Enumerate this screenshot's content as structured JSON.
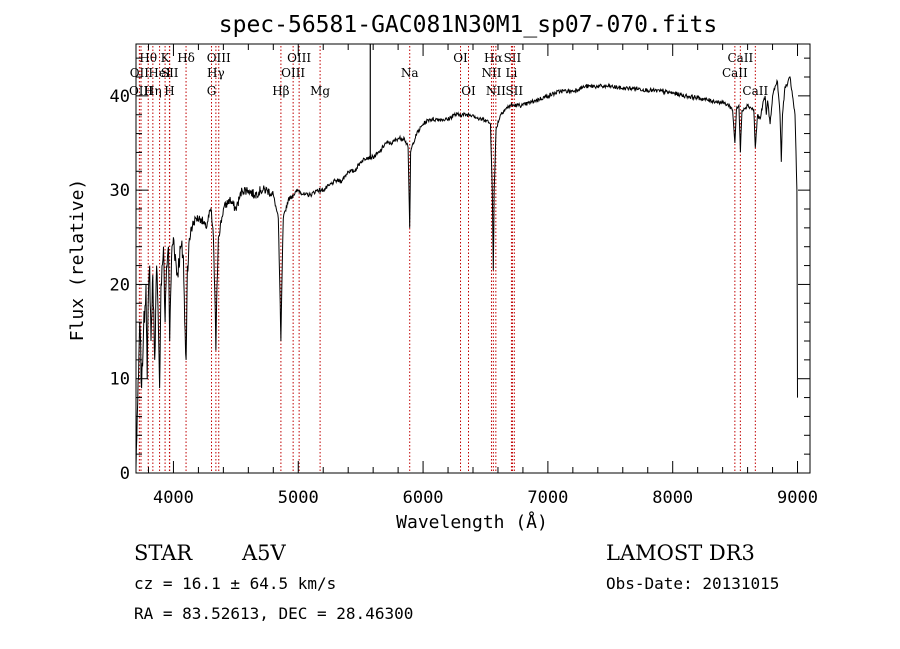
{
  "chart_data": {
    "type": "line",
    "title": "spec-56581-GAC081N30M1_sp07-070.fits",
    "xlabel": "Wavelength (Å)",
    "ylabel": "Flux (relative)",
    "xlim": [
      3700,
      9100
    ],
    "ylim": [
      0,
      45.5
    ],
    "xticks": [
      4000,
      5000,
      6000,
      7000,
      8000,
      9000
    ],
    "yticks": [
      0,
      10,
      20,
      30,
      40
    ],
    "x_minor_step": 200,
    "y_minor_step": 2,
    "grid": false,
    "series": [
      {
        "name": "spectrum",
        "anchors": [
          [
            3700,
            0.5
          ],
          [
            3710,
            6
          ],
          [
            3720,
            10
          ],
          [
            3730,
            16
          ],
          [
            3745,
            9
          ],
          [
            3760,
            15
          ],
          [
            3780,
            20
          ],
          [
            3790,
            10
          ],
          [
            3798,
            18
          ],
          [
            3810,
            22
          ],
          [
            3820,
            14
          ],
          [
            3835,
            21
          ],
          [
            3850,
            12
          ],
          [
            3865,
            22
          ],
          [
            3880,
            15
          ],
          [
            3889,
            9
          ],
          [
            3900,
            20
          ],
          [
            3920,
            24
          ],
          [
            3933,
            16
          ],
          [
            3945,
            22
          ],
          [
            3960,
            24
          ],
          [
            3970,
            14
          ],
          [
            3985,
            23
          ],
          [
            4000,
            25
          ],
          [
            4030,
            21
          ],
          [
            4060,
            24
          ],
          [
            4080,
            23
          ],
          [
            4090,
            16
          ],
          [
            4101,
            12
          ],
          [
            4112,
            22
          ],
          [
            4140,
            26
          ],
          [
            4180,
            27
          ],
          [
            4220,
            27
          ],
          [
            4260,
            26
          ],
          [
            4300,
            28
          ],
          [
            4320,
            25
          ],
          [
            4335,
            17
          ],
          [
            4340,
            13
          ],
          [
            4346,
            18
          ],
          [
            4360,
            25
          ],
          [
            4400,
            28
          ],
          [
            4450,
            29
          ],
          [
            4500,
            28
          ],
          [
            4550,
            30
          ],
          [
            4600,
            30
          ],
          [
            4650,
            29.5
          ],
          [
            4700,
            30
          ],
          [
            4750,
            30
          ],
          [
            4800,
            29.5
          ],
          [
            4840,
            27
          ],
          [
            4855,
            18
          ],
          [
            4861,
            14
          ],
          [
            4867,
            19
          ],
          [
            4880,
            27
          ],
          [
            4920,
            29
          ],
          [
            4960,
            29.5
          ],
          [
            5000,
            30
          ],
          [
            5050,
            29.5
          ],
          [
            5100,
            29.5
          ],
          [
            5150,
            30
          ],
          [
            5200,
            30
          ],
          [
            5250,
            30.5
          ],
          [
            5300,
            31
          ],
          [
            5350,
            31
          ],
          [
            5400,
            32
          ],
          [
            5450,
            32
          ],
          [
            5500,
            33
          ],
          [
            5550,
            33.5
          ],
          [
            5600,
            33.5
          ],
          [
            5650,
            34
          ],
          [
            5700,
            35
          ],
          [
            5750,
            35
          ],
          [
            5800,
            35.5
          ],
          [
            5850,
            35.5
          ],
          [
            5880,
            34.5
          ],
          [
            5893,
            26
          ],
          [
            5900,
            34
          ],
          [
            5920,
            35
          ],
          [
            5950,
            36
          ],
          [
            6000,
            37
          ],
          [
            6050,
            37.5
          ],
          [
            6100,
            37.5
          ],
          [
            6150,
            37.5
          ],
          [
            6200,
            37.5
          ],
          [
            6250,
            38
          ],
          [
            6300,
            38
          ],
          [
            6360,
            38
          ],
          [
            6400,
            38
          ],
          [
            6450,
            37.5
          ],
          [
            6500,
            37.5
          ],
          [
            6540,
            37
          ],
          [
            6555,
            30
          ],
          [
            6563,
            21.5
          ],
          [
            6570,
            30
          ],
          [
            6585,
            36.5
          ],
          [
            6620,
            38
          ],
          [
            6650,
            38.5
          ],
          [
            6700,
            39
          ],
          [
            6750,
            39
          ],
          [
            6800,
            39
          ],
          [
            6900,
            39.5
          ],
          [
            7000,
            40
          ],
          [
            7100,
            40.5
          ],
          [
            7200,
            40.5
          ],
          [
            7300,
            41
          ],
          [
            7400,
            41
          ],
          [
            7500,
            41
          ],
          [
            7600,
            40.8
          ],
          [
            7700,
            40.8
          ],
          [
            7800,
            40.6
          ],
          [
            7900,
            40.5
          ],
          [
            8000,
            40.3
          ],
          [
            8100,
            40
          ],
          [
            8200,
            39.8
          ],
          [
            8300,
            39.5
          ],
          [
            8400,
            39.3
          ],
          [
            8450,
            39
          ],
          [
            8480,
            38.5
          ],
          [
            8498,
            35
          ],
          [
            8510,
            38.5
          ],
          [
            8530,
            39
          ],
          [
            8542,
            34
          ],
          [
            8555,
            38.5
          ],
          [
            8600,
            39
          ],
          [
            8650,
            38.5
          ],
          [
            8662,
            34.5
          ],
          [
            8680,
            38
          ],
          [
            8700,
            37.5
          ],
          [
            8720,
            39
          ],
          [
            8740,
            40
          ],
          [
            8750,
            38
          ],
          [
            8760,
            39.5
          ],
          [
            8780,
            37
          ],
          [
            8800,
            40
          ],
          [
            8820,
            41
          ],
          [
            8840,
            41.5
          ],
          [
            8860,
            38
          ],
          [
            8870,
            33
          ],
          [
            8880,
            38
          ],
          [
            8900,
            41
          ],
          [
            8920,
            41.2
          ],
          [
            8940,
            42
          ],
          [
            8960,
            40
          ],
          [
            8980,
            38
          ],
          [
            8995,
            30
          ],
          [
            9000,
            8
          ]
        ]
      }
    ],
    "spikes": [
      {
        "x": 5577,
        "y": 45.5
      }
    ],
    "lines": [
      {
        "label": "Hθ",
        "x": 3798,
        "row": 1
      },
      {
        "label": "OII",
        "x": 3727,
        "row": 2
      },
      {
        "label": "OIII",
        "x": 3740,
        "row": 3
      },
      {
        "label": "Hη",
        "x": 3835,
        "row": 3
      },
      {
        "label": "HeI",
        "x": 3889,
        "row": 2
      },
      {
        "label": "K",
        "x": 3933,
        "row": 1
      },
      {
        "label": "SII",
        "x": 3970,
        "row": 2
      },
      {
        "label": "H",
        "x": 3968,
        "row": 3
      },
      {
        "label": "Hδ",
        "x": 4101,
        "row": 1
      },
      {
        "label": "OIII",
        "x": 4363,
        "row": 1
      },
      {
        "label": "Hγ",
        "x": 4340,
        "row": 2
      },
      {
        "label": "G",
        "x": 4305,
        "row": 3
      },
      {
        "label": "Hβ",
        "x": 4861,
        "row": 3
      },
      {
        "label": "OIII",
        "x": 4959,
        "row": 2
      },
      {
        "label": "OIII",
        "x": 5007,
        "row": 1
      },
      {
        "label": "Mg",
        "x": 5175,
        "row": 3
      },
      {
        "label": "Na",
        "x": 5893,
        "row": 2
      },
      {
        "label": "OI",
        "x": 6300,
        "row": 1
      },
      {
        "label": "OI",
        "x": 6364,
        "row": 3
      },
      {
        "label": "Hα",
        "x": 6563,
        "row": 1
      },
      {
        "label": "NII",
        "x": 6548,
        "row": 2
      },
      {
        "label": "NII",
        "x": 6583,
        "row": 3
      },
      {
        "label": "SII",
        "x": 6716,
        "row": 1
      },
      {
        "label": "Li",
        "x": 6708,
        "row": 2
      },
      {
        "label": "SII",
        "x": 6731,
        "row": 3
      },
      {
        "label": "CaII",
        "x": 8542,
        "row": 1
      },
      {
        "label": "CaII",
        "x": 8498,
        "row": 2
      },
      {
        "label": "CaII",
        "x": 8662,
        "row": 3
      }
    ]
  },
  "info": {
    "class": "STAR",
    "subclass": "A5V",
    "cz": "cz = 16.1 ± 64.5 km/s",
    "coords": "RA =  83.52613, DEC =  28.46300",
    "survey": "LAMOST DR3",
    "obs_date": "Obs-Date: 20131015"
  }
}
